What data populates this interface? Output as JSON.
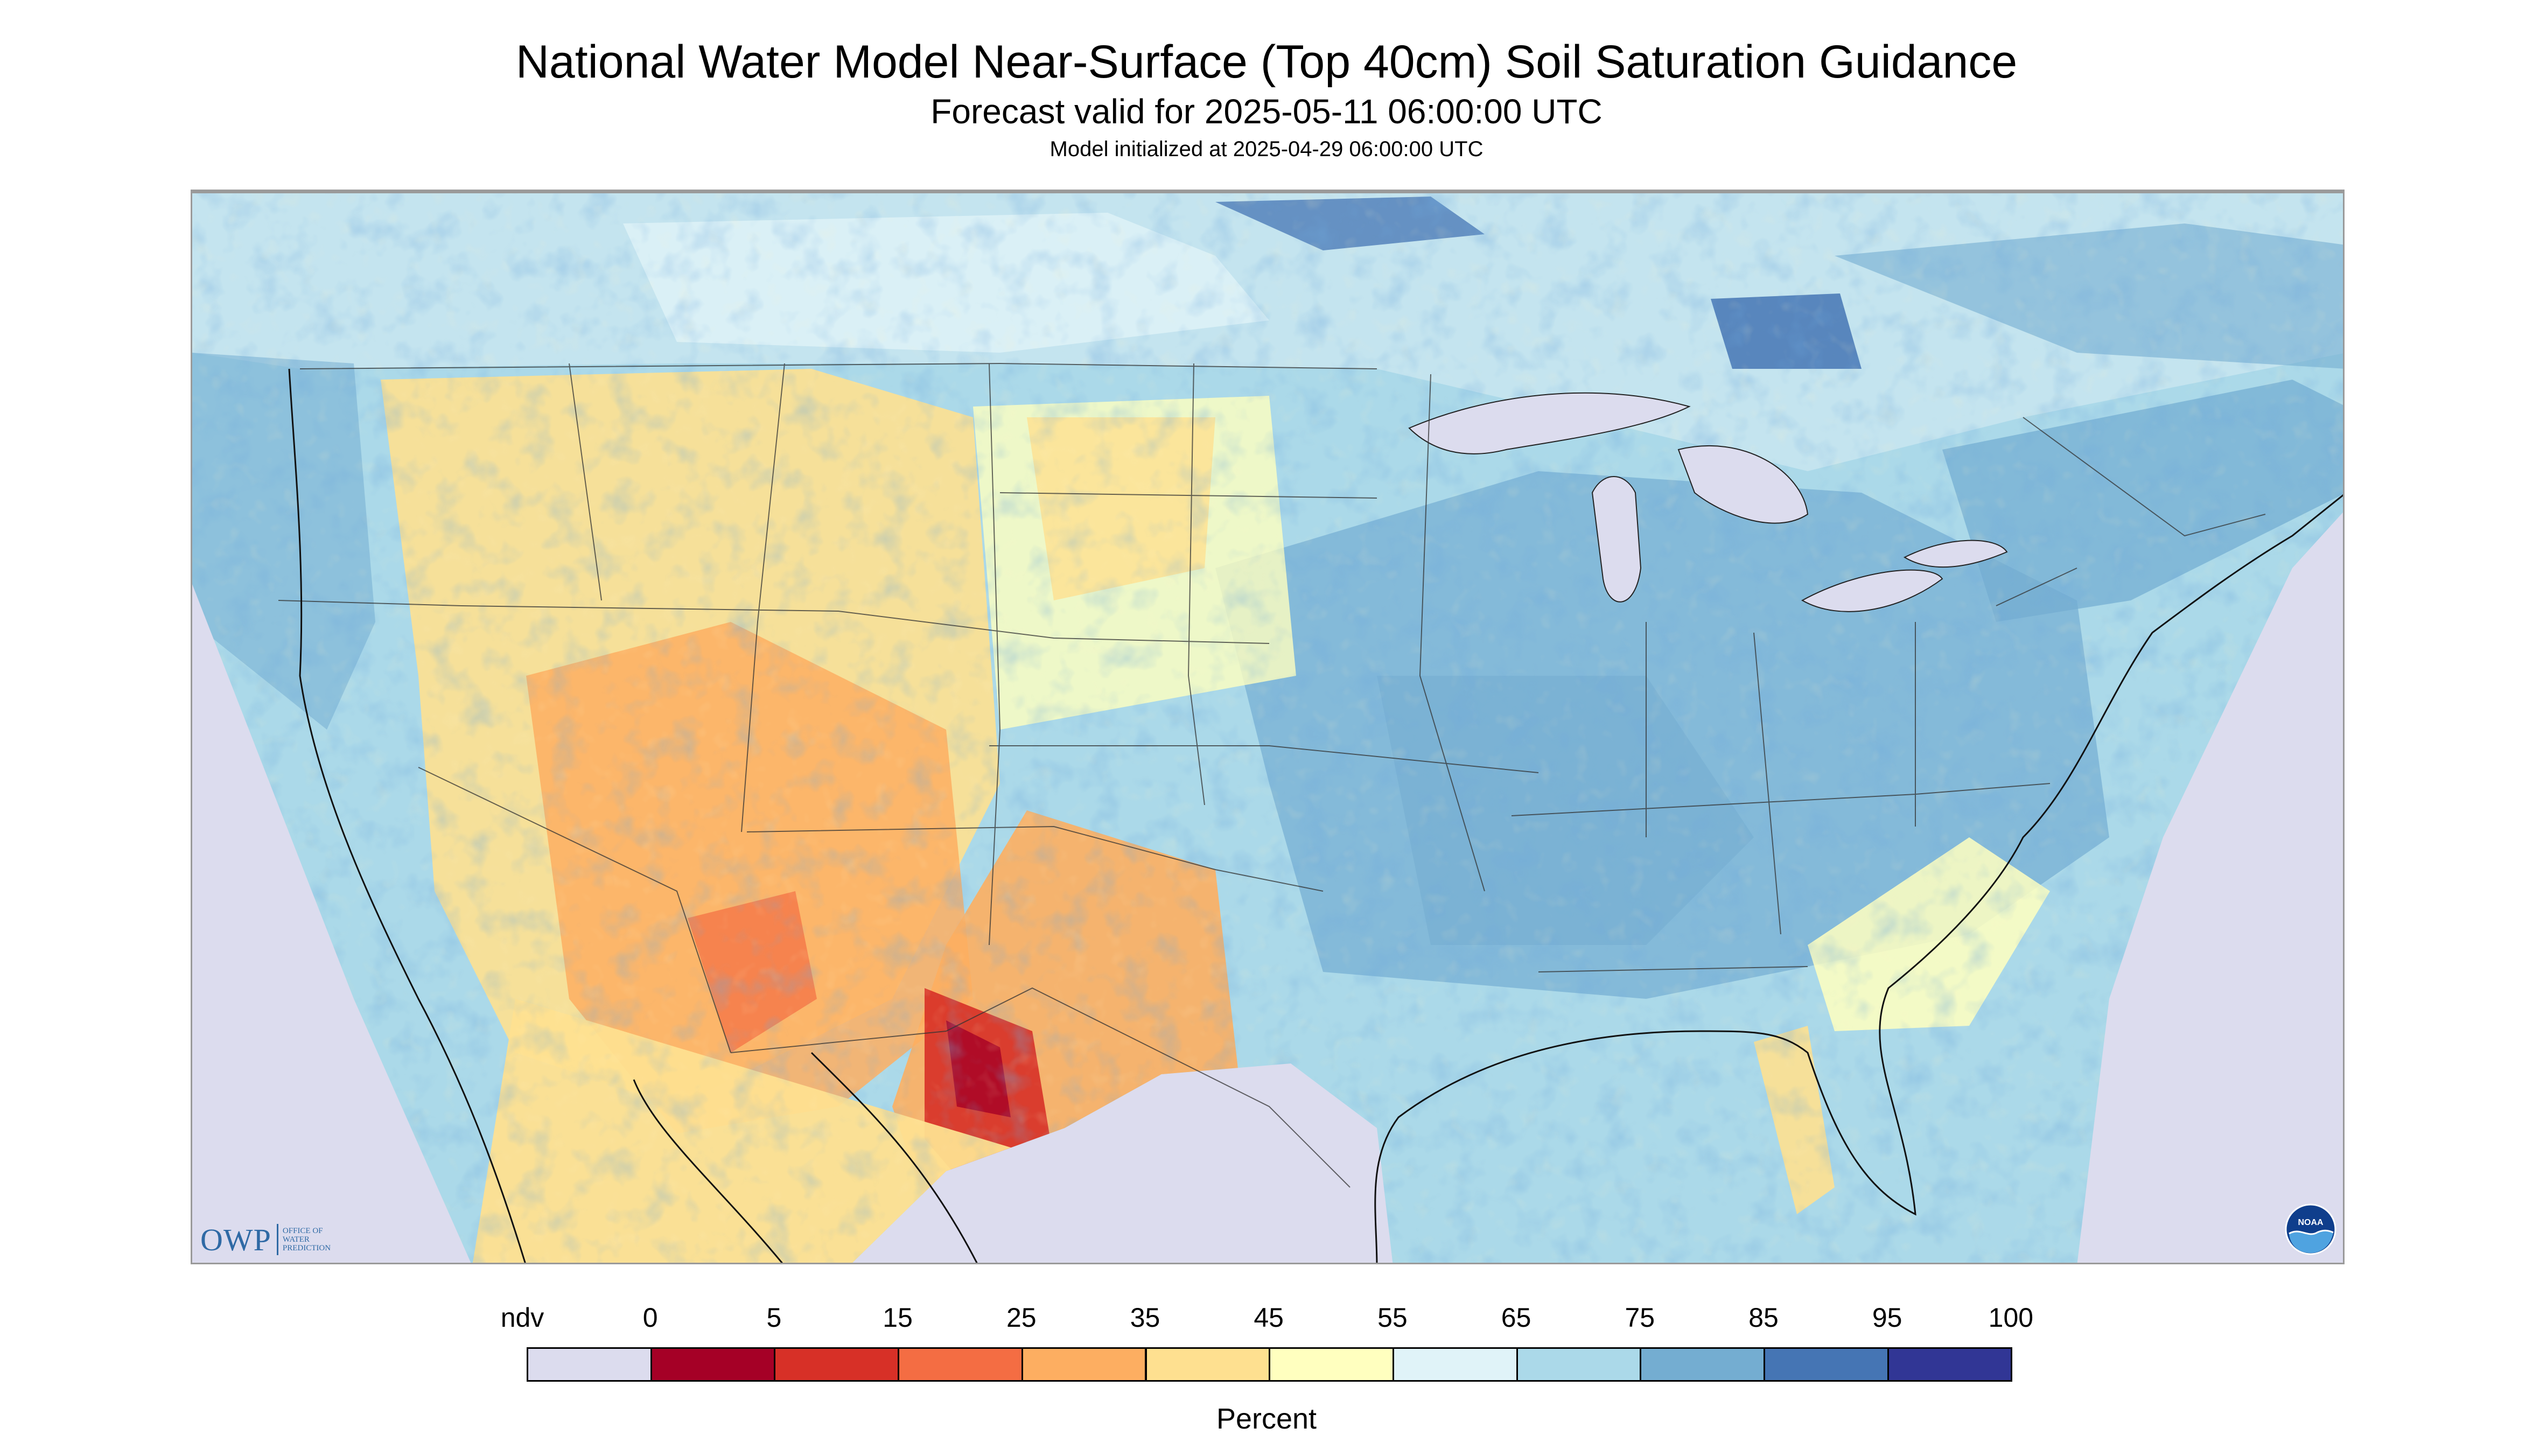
{
  "header": {
    "title": "National Water Model Near-Surface (Top 40cm) Soil Saturation Guidance",
    "subtitle": "Forecast valid for 2025-05-11 06:00:00 UTC",
    "init_line": "Model initialized at 2025-04-29 06:00:00 UTC"
  },
  "map": {
    "region": "Contiguous United States",
    "colors": {
      "ndv": "#dcdcee",
      "water": "#dcdcee",
      "border_lines": "#333333",
      "frame": "#9a9a9a"
    },
    "icons": [
      "owp-logo",
      "noaa-logo"
    ]
  },
  "owp_logo": {
    "word": "OWP",
    "sub_lines": [
      "OFFICE OF",
      "WATER",
      "PREDICTION"
    ]
  },
  "noaa_logo": {
    "text": "NOAA"
  },
  "legend": {
    "labels": [
      "ndv",
      "0",
      "5",
      "15",
      "25",
      "35",
      "45",
      "55",
      "65",
      "75",
      "85",
      "95",
      "100"
    ],
    "colors": [
      "#dcdcee",
      "#a50026",
      "#d73027",
      "#f46d43",
      "#fdae61",
      "#fee090",
      "#ffffbf",
      "#e0f3f8",
      "#abd9e9",
      "#74add1",
      "#4575b4",
      "#313695"
    ],
    "units": "Percent"
  }
}
